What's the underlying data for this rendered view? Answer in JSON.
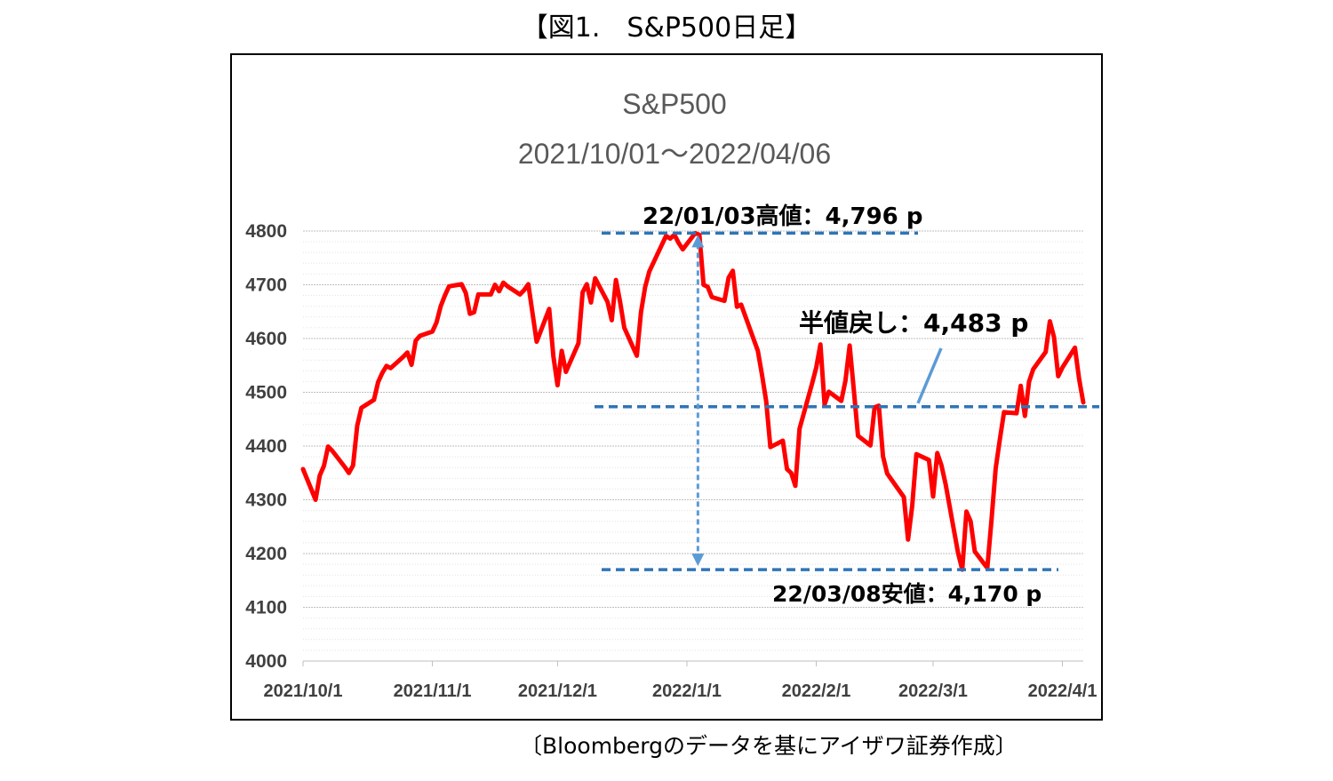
{
  "figure_caption": "【図1.　S&P500日足】",
  "source_note": "〔Bloombergのデータを基にアイザワ証券作成〕",
  "colors": {
    "series": "#ff0000",
    "annotation": "#2e75b6",
    "grid": "#d0d0d0"
  },
  "chart_data": {
    "type": "line",
    "title": "S&P500",
    "subtitle": "2021/10/01～2022/04/06",
    "xlabel": "",
    "ylabel": "",
    "ylim": [
      4000,
      4800
    ],
    "yticks": [
      "4000",
      "4100",
      "4200",
      "4300",
      "4400",
      "4500",
      "4600",
      "4700",
      "4800"
    ],
    "xticks": [
      {
        "date": "2021-10-01",
        "label": "2021/10/1"
      },
      {
        "date": "2021-11-01",
        "label": "2021/11/1"
      },
      {
        "date": "2021-12-01",
        "label": "2021/12/1"
      },
      {
        "date": "2022-01-01",
        "label": "2022/1/1"
      },
      {
        "date": "2022-02-01",
        "label": "2022/2/1"
      },
      {
        "date": "2022-03-01",
        "label": "2022/3/1"
      },
      {
        "date": "2022-04-01",
        "label": "2022/4/1"
      }
    ],
    "xlim": [
      "2021-10-01",
      "2022-04-06"
    ],
    "grid": true,
    "series": [
      {
        "points": [
          [
            "2021-10-01",
            4357
          ],
          [
            "2021-10-04",
            4300
          ],
          [
            "2021-10-05",
            4345
          ],
          [
            "2021-10-06",
            4363
          ],
          [
            "2021-10-07",
            4399
          ],
          [
            "2021-10-08",
            4391
          ],
          [
            "2021-10-11",
            4361
          ],
          [
            "2021-10-12",
            4350
          ],
          [
            "2021-10-13",
            4364
          ],
          [
            "2021-10-14",
            4438
          ],
          [
            "2021-10-15",
            4471
          ],
          [
            "2021-10-18",
            4486
          ],
          [
            "2021-10-19",
            4519
          ],
          [
            "2021-10-20",
            4536
          ],
          [
            "2021-10-21",
            4549
          ],
          [
            "2021-10-22",
            4545
          ],
          [
            "2021-10-25",
            4566
          ],
          [
            "2021-10-26",
            4574
          ],
          [
            "2021-10-27",
            4551
          ],
          [
            "2021-10-28",
            4596
          ],
          [
            "2021-10-29",
            4605
          ],
          [
            "2021-11-01",
            4613
          ],
          [
            "2021-11-02",
            4630
          ],
          [
            "2021-11-03",
            4660
          ],
          [
            "2021-11-04",
            4680
          ],
          [
            "2021-11-05",
            4697
          ],
          [
            "2021-11-08",
            4701
          ],
          [
            "2021-11-09",
            4685
          ],
          [
            "2021-11-10",
            4646
          ],
          [
            "2021-11-11",
            4649
          ],
          [
            "2021-11-12",
            4682
          ],
          [
            "2021-11-15",
            4682
          ],
          [
            "2021-11-16",
            4700
          ],
          [
            "2021-11-17",
            4688
          ],
          [
            "2021-11-18",
            4704
          ],
          [
            "2021-11-19",
            4697
          ],
          [
            "2021-11-22",
            4682
          ],
          [
            "2021-11-23",
            4690
          ],
          [
            "2021-11-24",
            4701
          ],
          [
            "2021-11-26",
            4594
          ],
          [
            "2021-11-29",
            4655
          ],
          [
            "2021-11-30",
            4567
          ],
          [
            "2021-12-01",
            4513
          ],
          [
            "2021-12-02",
            4577
          ],
          [
            "2021-12-03",
            4538
          ],
          [
            "2021-12-06",
            4591
          ],
          [
            "2021-12-07",
            4686
          ],
          [
            "2021-12-08",
            4701
          ],
          [
            "2021-12-09",
            4667
          ],
          [
            "2021-12-10",
            4712
          ],
          [
            "2021-12-13",
            4668
          ],
          [
            "2021-12-14",
            4634
          ],
          [
            "2021-12-15",
            4709
          ],
          [
            "2021-12-16",
            4668
          ],
          [
            "2021-12-17",
            4620
          ],
          [
            "2021-12-20",
            4568
          ],
          [
            "2021-12-21",
            4649
          ],
          [
            "2021-12-22",
            4696
          ],
          [
            "2021-12-23",
            4725
          ],
          [
            "2021-12-27",
            4791
          ],
          [
            "2021-12-28",
            4786
          ],
          [
            "2021-12-29",
            4793
          ],
          [
            "2021-12-30",
            4778
          ],
          [
            "2021-12-31",
            4766
          ],
          [
            "2022-01-03",
            4796
          ],
          [
            "2022-01-04",
            4793
          ],
          [
            "2022-01-05",
            4700
          ],
          [
            "2022-01-06",
            4696
          ],
          [
            "2022-01-07",
            4677
          ],
          [
            "2022-01-10",
            4670
          ],
          [
            "2022-01-11",
            4713
          ],
          [
            "2022-01-12",
            4726
          ],
          [
            "2022-01-13",
            4659
          ],
          [
            "2022-01-14",
            4663
          ],
          [
            "2022-01-18",
            4577
          ],
          [
            "2022-01-19",
            4532
          ],
          [
            "2022-01-20",
            4483
          ],
          [
            "2022-01-21",
            4398
          ],
          [
            "2022-01-24",
            4410
          ],
          [
            "2022-01-25",
            4357
          ],
          [
            "2022-01-26",
            4350
          ],
          [
            "2022-01-27",
            4326
          ],
          [
            "2022-01-28",
            4432
          ],
          [
            "2022-01-31",
            4516
          ],
          [
            "2022-02-01",
            4546
          ],
          [
            "2022-02-02",
            4589
          ],
          [
            "2022-02-03",
            4477
          ],
          [
            "2022-02-04",
            4501
          ],
          [
            "2022-02-07",
            4484
          ],
          [
            "2022-02-08",
            4522
          ],
          [
            "2022-02-09",
            4587
          ],
          [
            "2022-02-10",
            4504
          ],
          [
            "2022-02-11",
            4419
          ],
          [
            "2022-02-14",
            4401
          ],
          [
            "2022-02-15",
            4472
          ],
          [
            "2022-02-16",
            4475
          ],
          [
            "2022-02-17",
            4381
          ],
          [
            "2022-02-18",
            4349
          ],
          [
            "2022-02-22",
            4305
          ],
          [
            "2022-02-23",
            4226
          ],
          [
            "2022-02-24",
            4289
          ],
          [
            "2022-02-25",
            4385
          ],
          [
            "2022-02-28",
            4374
          ],
          [
            "2022-03-01",
            4306
          ],
          [
            "2022-03-02",
            4387
          ],
          [
            "2022-03-03",
            4364
          ],
          [
            "2022-03-04",
            4329
          ],
          [
            "2022-03-07",
            4201
          ],
          [
            "2022-03-08",
            4170
          ],
          [
            "2022-03-09",
            4278
          ],
          [
            "2022-03-10",
            4260
          ],
          [
            "2022-03-11",
            4204
          ],
          [
            "2022-03-14",
            4173
          ],
          [
            "2022-03-15",
            4262
          ],
          [
            "2022-03-16",
            4358
          ],
          [
            "2022-03-17",
            4412
          ],
          [
            "2022-03-18",
            4463
          ],
          [
            "2022-03-21",
            4461
          ],
          [
            "2022-03-22",
            4512
          ],
          [
            "2022-03-23",
            4456
          ],
          [
            "2022-03-24",
            4520
          ],
          [
            "2022-03-25",
            4543
          ],
          [
            "2022-03-28",
            4575
          ],
          [
            "2022-03-29",
            4632
          ],
          [
            "2022-03-30",
            4602
          ],
          [
            "2022-03-31",
            4530
          ],
          [
            "2022-04-01",
            4546
          ],
          [
            "2022-04-04",
            4583
          ],
          [
            "2022-04-05",
            4525
          ],
          [
            "2022-04-06",
            4481
          ]
        ]
      }
    ],
    "annotations": [
      {
        "label": "22/01/03高値：4,796 p",
        "value": 4796,
        "date": "2022-01-03"
      },
      {
        "label": "半値戻し：4,483 p",
        "value": 4483
      },
      {
        "label": "22/03/08安値：4,170 p",
        "value": 4170,
        "date": "2022-03-08"
      }
    ]
  }
}
